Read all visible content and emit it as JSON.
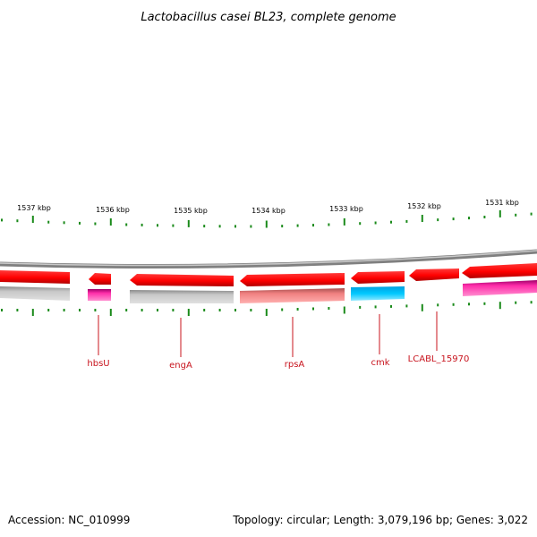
{
  "title": "Lactobacillus casei BL23, complete genome",
  "footer": {
    "accession": "Accession: NC_010999",
    "summary": "Topology: circular; Length: 3,079,196 bp; Genes: 3,022"
  },
  "kbp_labels": [
    "1537 kbp",
    "1536 kbp",
    "1535 kbp",
    "1534 kbp",
    "1533 kbp",
    "1532 kbp",
    "1531 kbp"
  ],
  "gene_labels": [
    "hbsU",
    "engA",
    "rpsA",
    "cmk",
    "LCABL_15970"
  ],
  "colors": {
    "backbone": "#808080",
    "gene_red": "#ff0000",
    "gray": "#bbbbbb",
    "magenta": "#ff2eaa",
    "salmon": "#f08080",
    "cyan": "#00b4f0",
    "label_red": "#c8141e",
    "tick_green": "#1a8a1a"
  }
}
